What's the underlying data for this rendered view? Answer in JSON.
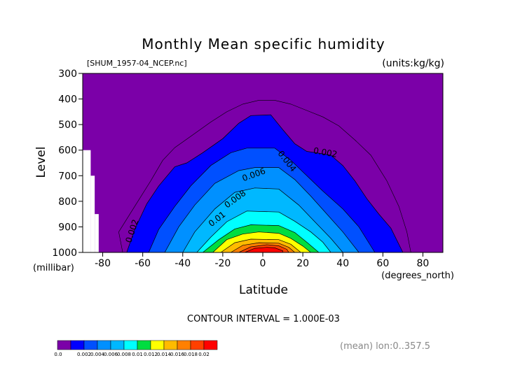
{
  "title": "Monthly Mean specific humidity",
  "file_label": "[SHUM_1957-04_NCEP.nc]",
  "units_label": "(units:kg/kg)",
  "contour_interval": "CONTOUR INTERVAL = 1.000E-03",
  "mean_label": "(mean) lon:0..357.5",
  "chart_data": {
    "type": "heatmap",
    "title": "Monthly Mean specific humidity",
    "xlabel": "Latitude",
    "x_units": "(degrees_north)",
    "ylabel": "Level",
    "y_units": "(millibar)",
    "xlim": [
      -90,
      90
    ],
    "ylim": [
      1000,
      300
    ],
    "x_ticks": [
      -80,
      -60,
      -40,
      -20,
      0,
      20,
      40,
      60,
      80
    ],
    "x_tick_labels": [
      "-80",
      "-60",
      "-40",
      "-20",
      "0",
      "20",
      "40",
      "60",
      "80"
    ],
    "y_ticks": [
      300,
      400,
      500,
      600,
      700,
      800,
      900,
      1000
    ],
    "y_tick_labels": [
      "300",
      "400",
      "500",
      "600",
      "700",
      "800",
      "900",
      "1000"
    ],
    "colors": {
      "purple": "#7b00a8",
      "blue_dark": "#0000ff",
      "blue_mid": "#0050ff",
      "blue_light": "#0090ff",
      "cyan_blue": "#00b8ff",
      "cyan": "#00ffff",
      "green": "#00dd40",
      "yellow": "#ffff00",
      "yellow_orange": "#ffbb00",
      "orange": "#ff8000",
      "orange_red": "#ff4000",
      "red": "#ff0000"
    },
    "colorbar": {
      "boundaries": [
        "0.0",
        "0.002",
        "0.004",
        "0.006",
        "0.008",
        "0.01",
        "0.012",
        "0.014",
        "0.016",
        "0.018",
        "0.02"
      ],
      "colors": [
        "#7b00a8",
        "#0000ff",
        "#0050ff",
        "#0090ff",
        "#00b8ff",
        "#00ffff",
        "#00dd40",
        "#ffff00",
        "#ffbb00",
        "#ff8000",
        "#ff4000",
        "#ff0000"
      ]
    },
    "contour_labels": [
      "0.002",
      "0.002",
      "0.004",
      "0.006",
      "0.008",
      "0.01"
    ],
    "levels": [
      {
        "value": 0.001,
        "fill": "#7b00a8",
        "left": [
          [
            -90,
            1000
          ],
          [
            -90,
            300
          ]
        ],
        "right": []
      },
      {
        "value": 0.002,
        "fill": "#0000ff",
        "left": [
          [
            -68,
            1000
          ],
          [
            -64,
            910
          ],
          [
            -58,
            810
          ],
          [
            -52,
            740
          ],
          [
            -44,
            665
          ],
          [
            -38,
            650
          ],
          [
            -30,
            610
          ],
          [
            -20,
            555
          ],
          [
            -12,
            495
          ],
          [
            -6,
            465
          ]
        ],
        "right": [
          [
            4,
            462
          ],
          [
            10,
            520
          ],
          [
            16,
            575
          ],
          [
            22,
            605
          ],
          [
            28,
            612
          ],
          [
            34,
            620
          ],
          [
            40,
            660
          ],
          [
            46,
            720
          ],
          [
            52,
            790
          ],
          [
            58,
            850
          ],
          [
            64,
            905
          ],
          [
            70,
            1000
          ]
        ]
      },
      {
        "value": 0.004,
        "fill": "#0050ff",
        "left": [
          [
            -57,
            1000
          ],
          [
            -52,
            910
          ],
          [
            -44,
            820
          ],
          [
            -36,
            740
          ],
          [
            -26,
            660
          ],
          [
            -16,
            610
          ],
          [
            -8,
            592
          ]
        ],
        "right": [
          [
            6,
            592
          ],
          [
            14,
            640
          ],
          [
            22,
            700
          ],
          [
            30,
            760
          ],
          [
            40,
            830
          ],
          [
            48,
            900
          ],
          [
            56,
            1000
          ]
        ]
      },
      {
        "value": 0.006,
        "fill": "#0090ff",
        "left": [
          [
            -49,
            1000
          ],
          [
            -42,
            900
          ],
          [
            -34,
            815
          ],
          [
            -24,
            730
          ],
          [
            -12,
            680
          ],
          [
            -4,
            668
          ]
        ],
        "right": [
          [
            8,
            668
          ],
          [
            16,
            715
          ],
          [
            24,
            780
          ],
          [
            32,
            850
          ],
          [
            40,
            920
          ],
          [
            48,
            1000
          ]
        ]
      },
      {
        "value": 0.008,
        "fill": "#00b8ff",
        "left": [
          [
            -40,
            1000
          ],
          [
            -34,
            920
          ],
          [
            -24,
            830
          ],
          [
            -14,
            765
          ],
          [
            -4,
            748
          ]
        ],
        "right": [
          [
            8,
            752
          ],
          [
            18,
            815
          ],
          [
            26,
            880
          ],
          [
            34,
            945
          ],
          [
            40,
            1000
          ]
        ]
      },
      {
        "value": 0.01,
        "fill": "#00ffff",
        "left": [
          [
            -33,
            1000
          ],
          [
            -26,
            940
          ],
          [
            -18,
            880
          ],
          [
            -8,
            838
          ]
        ],
        "right": [
          [
            8,
            842
          ],
          [
            16,
            878
          ],
          [
            24,
            920
          ],
          [
            30,
            960
          ],
          [
            34,
            1000
          ]
        ]
      },
      {
        "value": 0.012,
        "fill": "#00dd40",
        "left": [
          [
            -30,
            1000
          ],
          [
            -22,
            950
          ],
          [
            -14,
            908
          ],
          [
            -6,
            892
          ]
        ],
        "right": [
          [
            8,
            895
          ],
          [
            16,
            922
          ],
          [
            22,
            960
          ],
          [
            28,
            1000
          ]
        ]
      },
      {
        "value": 0.014,
        "fill": "#ffff00",
        "left": [
          [
            -25,
            1000
          ],
          [
            -18,
            950
          ],
          [
            -10,
            928
          ],
          [
            -2,
            920
          ]
        ],
        "right": [
          [
            8,
            925
          ],
          [
            14,
            945
          ],
          [
            20,
            975
          ],
          [
            24,
            1000
          ]
        ]
      },
      {
        "value": 0.016,
        "fill": "#ffbb00",
        "left": [
          [
            -21,
            1000
          ],
          [
            -14,
            962
          ],
          [
            -6,
            948
          ]
        ],
        "right": [
          [
            8,
            950
          ],
          [
            14,
            968
          ],
          [
            19,
            1000
          ]
        ]
      },
      {
        "value": 0.018,
        "fill": "#ff8000",
        "left": [
          [
            -16,
            1000
          ],
          [
            -10,
            972
          ],
          [
            -2,
            962
          ]
        ],
        "right": [
          [
            8,
            964
          ],
          [
            13,
            980
          ],
          [
            16,
            1000
          ]
        ]
      },
      {
        "value": 0.02,
        "fill": "#ff4000",
        "left": [
          [
            -12,
            1000
          ],
          [
            -6,
            978
          ],
          [
            2,
            970
          ]
        ],
        "right": [
          [
            8,
            974
          ],
          [
            12,
            988
          ],
          [
            13,
            1000
          ]
        ]
      },
      {
        "value": 0.022,
        "fill": "#ff0000",
        "left": [
          [
            -9,
            1000
          ],
          [
            -4,
            984
          ],
          [
            2,
            980
          ]
        ],
        "right": [
          [
            6,
            982
          ],
          [
            10,
            994
          ],
          [
            10,
            1000
          ]
        ]
      }
    ],
    "outer_contour": [
      [
        -70,
        1000
      ],
      [
        -72,
        920
      ],
      [
        -64,
        820
      ],
      [
        -56,
        720
      ],
      [
        -50,
        640
      ],
      [
        -44,
        590
      ],
      [
        -34,
        535
      ],
      [
        -26,
        490
      ],
      [
        -18,
        450
      ],
      [
        -10,
        420
      ],
      [
        -2,
        405
      ],
      [
        6,
        405
      ],
      [
        14,
        420
      ],
      [
        22,
        445
      ],
      [
        30,
        470
      ],
      [
        38,
        505
      ],
      [
        46,
        560
      ],
      [
        54,
        620
      ],
      [
        62,
        720
      ],
      [
        68,
        820
      ],
      [
        72,
        920
      ],
      [
        74,
        1000
      ]
    ],
    "missing_region": [
      {
        "lat": [
          -90,
          -86
        ],
        "lev": [
          1000,
          600
        ]
      },
      {
        "lat": [
          -86,
          -84
        ],
        "lev": [
          1000,
          700
        ]
      },
      {
        "lat": [
          -84,
          -82
        ],
        "lev": [
          1000,
          850
        ]
      }
    ]
  }
}
